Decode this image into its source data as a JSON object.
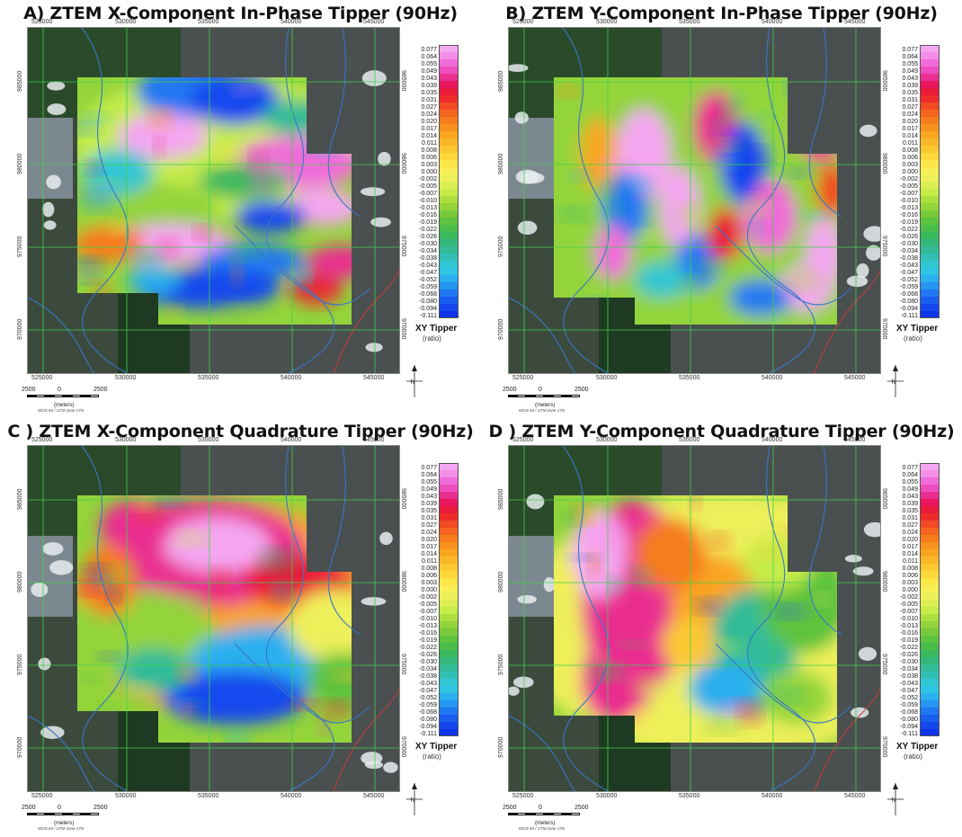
{
  "panels": [
    {
      "id": "a",
      "title": "A) ZTEM X-Component In-Phase Tipper (90Hz)"
    },
    {
      "id": "b",
      "title": "B) ZTEM Y-Component In-Phase Tipper (90Hz)"
    },
    {
      "id": "c",
      "title": "C ) ZTEM X-Component Quadrature Tipper (90Hz)"
    },
    {
      "id": "d",
      "title": "D ) ZTEM Y-Component Quadrature Tipper (90Hz)"
    }
  ],
  "colorbar": {
    "title": "XY Tipper",
    "unit": "(ratio)",
    "labels": [
      "0.077",
      "0.064",
      "0.055",
      "0.049",
      "0.043",
      "0.039",
      "0.035",
      "0.031",
      "0.027",
      "0.024",
      "0.020",
      "0.017",
      "0.014",
      "0.011",
      "0.008",
      "0.006",
      "0.003",
      "0.000",
      "-0.002",
      "-0.005",
      "-0.007",
      "-0.010",
      "-0.013",
      "-0.016",
      "-0.019",
      "-0.022",
      "-0.026",
      "-0.030",
      "-0.034",
      "-0.038",
      "-0.043",
      "-0.047",
      "-0.052",
      "-0.059",
      "-0.068",
      "-0.080",
      "-0.094",
      "-0.111"
    ],
    "colors": [
      "#f4a6f0",
      "#f58ee8",
      "#f06cd8",
      "#ec4fbd",
      "#ea2f90",
      "#e8175f",
      "#ea1a3a",
      "#ee2b2b",
      "#f24a22",
      "#f5641e",
      "#f77c1c",
      "#f8921c",
      "#f9a520",
      "#fab828",
      "#fbc830",
      "#fcd83a",
      "#fce648",
      "#f8ee55",
      "#eef05a",
      "#dcef52",
      "#c6ec48",
      "#addf3f",
      "#93d43a",
      "#78ca3a",
      "#5ec33e",
      "#48bd4a",
      "#3ab85e",
      "#34b87a",
      "#33bb98",
      "#32c0b6",
      "#30c6d2",
      "#2ec4e4",
      "#2ab0ee",
      "#2696f2",
      "#2078f2",
      "#1a5ef0",
      "#1448ee",
      "#1034e8"
    ]
  },
  "map": {
    "easting_labels": [
      "525000",
      "530000",
      "535000",
      "540000",
      "545000"
    ],
    "northing_labels": [
      "985000",
      "980000",
      "975000",
      "970000"
    ]
  },
  "scalebar": {
    "ticks": [
      "2500",
      "0",
      "2500"
    ],
    "units": "(meters)",
    "projection": "WGS 84 / UTM zone 17N"
  },
  "north_label": "N",
  "colors": {
    "satellite_dark": "#2b3a2e",
    "grid_line": "#3fd14a",
    "river": "#3a76c8",
    "road": "#cc3a3a"
  }
}
